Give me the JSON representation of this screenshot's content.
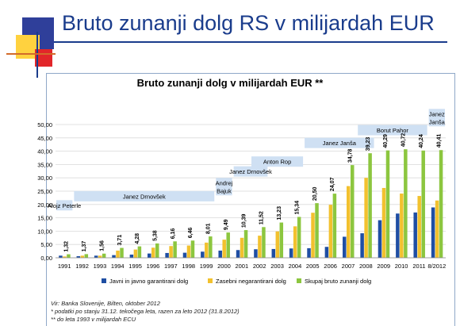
{
  "slide": {
    "title": "Bruto zunanji dolg RS v milijardah EUR"
  },
  "chart_data": {
    "type": "bar",
    "title": "Bruto zunanji dolg v milijardah EUR **",
    "categories": [
      "1991",
      "1992",
      "1993",
      "1994",
      "1995",
      "1996",
      "1997",
      "1998",
      "1999",
      "2000",
      "2001",
      "2002",
      "2003",
      "2004",
      "2005",
      "2006",
      "2007",
      "2008",
      "2009",
      "2010",
      "2011",
      "8/2012"
    ],
    "ylim": [
      0,
      50
    ],
    "yticks": [
      "0,00",
      "5,00",
      "10,00",
      "15,00",
      "20,00",
      "25,00",
      "30,00",
      "35,00",
      "40,00",
      "45,00",
      "50,00"
    ],
    "grid": true,
    "legend_position": "bottom",
    "series": [
      {
        "name": "Javni in javno garantirani dolg",
        "color": "#1f4ea3",
        "values": [
          0.8,
          0.6,
          0.8,
          1.0,
          1.2,
          1.6,
          1.8,
          1.9,
          2.3,
          2.7,
          2.9,
          3.2,
          3.3,
          3.5,
          3.6,
          4.1,
          7.9,
          9.2,
          14.1,
          16.6,
          17.0,
          18.9
        ]
      },
      {
        "name": "Zasebni negarantirani dolg",
        "color": "#f2c12e",
        "values": [
          0.5,
          0.8,
          0.8,
          2.7,
          3.1,
          3.8,
          4.4,
          4.6,
          5.7,
          6.8,
          7.5,
          8.3,
          9.9,
          11.8,
          16.9,
          19.9,
          26.9,
          30.0,
          26.2,
          24.1,
          23.2,
          21.5
        ]
      },
      {
        "name": "Skupaj bruto zunanji dolg",
        "color": "#8cc63f",
        "values": [
          1.32,
          1.37,
          1.56,
          3.71,
          4.28,
          5.38,
          6.16,
          6.46,
          8.01,
          9.49,
          10.39,
          11.52,
          13.23,
          15.34,
          20.5,
          24.07,
          34.78,
          39.23,
          40.29,
          40.72,
          40.24,
          40.41
        ],
        "labels": [
          "1,32",
          "1,37",
          "1,56",
          "3,71",
          "4,28",
          "5,38",
          "6,16",
          "6,46",
          "8,01",
          "9,49",
          "10,39",
          "11,52",
          "13,23",
          "15,34",
          "20,50",
          "24,07",
          "34,78",
          "39,23",
          "40,29",
          "40,72",
          "40,24",
          "40,41"
        ]
      }
    ],
    "annotations": [
      {
        "text": "Alojz Peterle",
        "from": 0,
        "to": 0,
        "level": 19.7,
        "lines": [
          "Alojz Peterle"
        ]
      },
      {
        "text": "Janez Drnovšek",
        "from": 1,
        "to": 8,
        "level": 23.1,
        "lines": [
          "Janez Drnovšek"
        ]
      },
      {
        "text": "Andrej Bajuk",
        "from": 9,
        "to": 9,
        "level": 26.7,
        "lines": [
          "Andrej",
          "Bajuk"
        ]
      },
      {
        "text": "Janez Drnovšek",
        "from": 10,
        "to": 11,
        "level": 32.4,
        "lines": [
          "Janez Drnovšek"
        ]
      },
      {
        "text": "Anton Rop",
        "from": 11,
        "to": 13,
        "level": 36.1,
        "lines": [
          "Anton Rop"
        ]
      },
      {
        "text": "Janez Janša",
        "from": 14,
        "to": 17,
        "level": 43.1,
        "lines": [
          "Janez Janša"
        ]
      },
      {
        "text": "Borut Pahor",
        "from": 17,
        "to": 20,
        "level": 47.9,
        "lines": [
          "Borut Pahor"
        ]
      },
      {
        "text": "Janez Janša",
        "from": 21,
        "to": 21,
        "level": 52.6,
        "lines": [
          "Janez",
          "Janša"
        ]
      }
    ]
  },
  "footnotes": {
    "source": "Vir: Banka Slovenije, Bilten, oktober 2012",
    "note1": "* podatki po stanju 31.12. tekočega leta, razen za leto 2012 (31.8.2012)",
    "note2": "** do leta 1993 v milijardah ECU"
  },
  "colors": {
    "title": "#1a3c8c",
    "annotation_bg": "#cfe0f3",
    "gridline": "#d9d9d9"
  }
}
